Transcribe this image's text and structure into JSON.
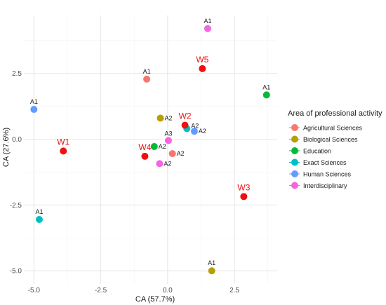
{
  "chart_data": {
    "type": "scatter",
    "xlabel": "CA (57.7%)",
    "ylabel": "CA (27.6%)",
    "xlim": [
      -5.35,
      4.1
    ],
    "ylim": [
      -5.5,
      4.7
    ],
    "x_ticks": [
      -5.0,
      -2.5,
      0.0,
      2.5
    ],
    "x_tick_labels": [
      "-5.0",
      "-2.5",
      "0.0",
      "2.5"
    ],
    "y_ticks": [
      -5.0,
      -2.5,
      0.0,
      2.5
    ],
    "y_tick_labels": [
      "-5.0",
      "-2.5",
      "0.0",
      "2.5"
    ],
    "grid": true,
    "legend": {
      "title": "Area of professional activity",
      "placement": "right",
      "entries": [
        "Agricultural Sciences",
        "Biological Sciences",
        "Education",
        "Exact Sciences",
        "Human Sciences",
        "Interdisciplinary"
      ]
    },
    "colors": {
      "Agricultural Sciences": "#F8766D",
      "Biological Sciences": "#B79F00",
      "Education": "#00BA38",
      "Exact Sciences": "#00BFC4",
      "Human Sciences": "#619CFF",
      "Interdisciplinary": "#F564E3",
      "W": "#EE1111"
    },
    "points": [
      {
        "label": "A1",
        "group": "Agricultural Sciences",
        "x": -0.78,
        "y": 2.28
      },
      {
        "label": "A2",
        "group": "Agricultural Sciences",
        "x": 0.18,
        "y": -0.55
      },
      {
        "label": "A1",
        "group": "Biological Sciences",
        "x": 1.65,
        "y": -5.0
      },
      {
        "label": "A2",
        "group": "Biological Sciences",
        "x": -0.27,
        "y": 0.8
      },
      {
        "label": "A1",
        "group": "Education",
        "x": 3.7,
        "y": 1.68
      },
      {
        "label": "A2",
        "group": "Education",
        "x": -0.5,
        "y": -0.28
      },
      {
        "label": "A1",
        "group": "Exact Sciences",
        "x": -4.8,
        "y": -3.05
      },
      {
        "label": "A2",
        "group": "Exact Sciences",
        "x": 0.72,
        "y": 0.4
      },
      {
        "label": "A1",
        "group": "Human Sciences",
        "x": -5.0,
        "y": 1.13
      },
      {
        "label": "A2",
        "group": "Human Sciences",
        "x": 1.0,
        "y": 0.3
      },
      {
        "label": "A1",
        "group": "Interdisciplinary",
        "x": 1.5,
        "y": 4.2
      },
      {
        "label": "A2",
        "group": "Interdisciplinary",
        "x": -0.3,
        "y": -0.93
      },
      {
        "label": "A3",
        "group": "Interdisciplinary",
        "x": 0.03,
        "y": -0.05
      },
      {
        "label": "W1",
        "group": "W",
        "x": -3.9,
        "y": -0.45
      },
      {
        "label": "W2",
        "group": "W",
        "x": 0.65,
        "y": 0.53
      },
      {
        "label": "W3",
        "group": "W",
        "x": 2.85,
        "y": -2.18
      },
      {
        "label": "W4",
        "group": "W",
        "x": -0.85,
        "y": -0.65
      },
      {
        "label": "W5",
        "group": "W",
        "x": 1.3,
        "y": 2.68
      }
    ]
  }
}
